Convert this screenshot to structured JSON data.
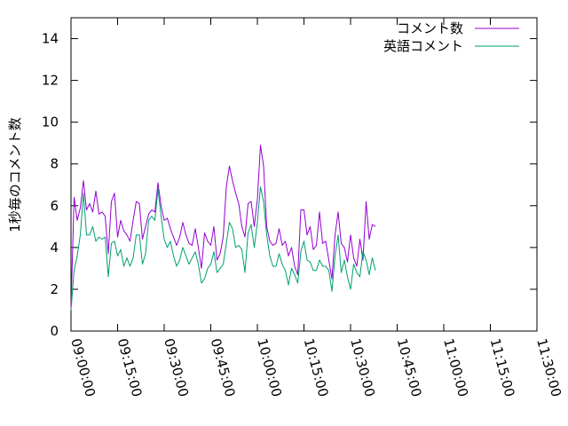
{
  "chart_data": {
    "type": "line",
    "xlabel": "",
    "ylabel": "1秒毎のコメント数",
    "xlim": [
      "09:00:00",
      "11:30:00"
    ],
    "ylim": [
      0,
      15
    ],
    "x_ticks": [
      "09:00:00",
      "09:15:00",
      "09:30:00",
      "09:45:00",
      "10:00:00",
      "10:15:00",
      "10:30:00",
      "10:45:00",
      "11:00:00",
      "11:15:00",
      "11:30:00"
    ],
    "y_ticks": [
      0,
      2,
      4,
      6,
      8,
      10,
      12,
      14
    ],
    "legend_position": "top-right",
    "grid": false,
    "x_interval_seconds": 60,
    "x_start": "09:00:00",
    "series": [
      {
        "name": "コメント数",
        "color": "#9400d3",
        "values": [
          1.1,
          6.4,
          5.3,
          5.9,
          7.2,
          5.8,
          6.1,
          5.7,
          6.7,
          5.6,
          5.7,
          5.5,
          3.7,
          6.2,
          6.6,
          4.5,
          5.3,
          4.8,
          4.6,
          4.3,
          5.3,
          6.2,
          6.1,
          4.4,
          5.0,
          5.6,
          5.8,
          5.7,
          7.1,
          6.0,
          5.3,
          5.4,
          4.9,
          4.5,
          4.1,
          4.5,
          5.2,
          4.6,
          4.2,
          4.1,
          4.9,
          4.0,
          3.0,
          4.7,
          4.3,
          4.1,
          5.0,
          3.4,
          3.7,
          4.5,
          6.9,
          7.9,
          7.2,
          6.6,
          6.1,
          5.0,
          4.5,
          6.1,
          6.2,
          5.0,
          6.3,
          8.9,
          7.9,
          5.0,
          4.3,
          4.1,
          4.2,
          4.9,
          4.1,
          4.3,
          3.6,
          4.0,
          3.1,
          2.7,
          5.8,
          5.8,
          4.6,
          5.0,
          3.9,
          4.1,
          5.7,
          4.2,
          4.3,
          3.4,
          2.5,
          4.6,
          5.7,
          4.2,
          4.0,
          3.3,
          4.6,
          3.5,
          3.1,
          4.4,
          3.4,
          6.2,
          4.4,
          5.1,
          5.0
        ]
      },
      {
        "name": "英語コメント",
        "color": "#009e73",
        "values": [
          1.0,
          2.9,
          3.6,
          4.6,
          6.6,
          4.6,
          4.6,
          5.0,
          4.3,
          4.5,
          4.4,
          4.5,
          2.6,
          4.2,
          4.3,
          3.6,
          3.9,
          3.1,
          3.5,
          3.1,
          3.5,
          4.6,
          4.6,
          3.2,
          3.7,
          5.3,
          5.5,
          5.3,
          6.8,
          5.5,
          4.4,
          4.0,
          4.3,
          3.6,
          3.1,
          3.4,
          4.0,
          3.6,
          3.2,
          3.5,
          3.8,
          3.2,
          2.3,
          2.5,
          3.0,
          3.2,
          3.8,
          2.8,
          3.0,
          3.2,
          4.2,
          5.2,
          4.9,
          4.0,
          4.1,
          3.9,
          2.8,
          4.7,
          5.1,
          4.0,
          5.2,
          6.9,
          6.2,
          4.6,
          3.6,
          3.1,
          3.1,
          3.7,
          3.2,
          2.9,
          2.2,
          3.0,
          2.7,
          2.3,
          3.8,
          4.3,
          3.4,
          3.3,
          2.9,
          2.9,
          3.4,
          3.1,
          3.1,
          2.9,
          1.9,
          3.6,
          4.6,
          2.8,
          3.4,
          2.6,
          2.0,
          3.2,
          2.8,
          2.6,
          3.8,
          3.4,
          2.7,
          3.5,
          2.9
        ]
      }
    ]
  }
}
